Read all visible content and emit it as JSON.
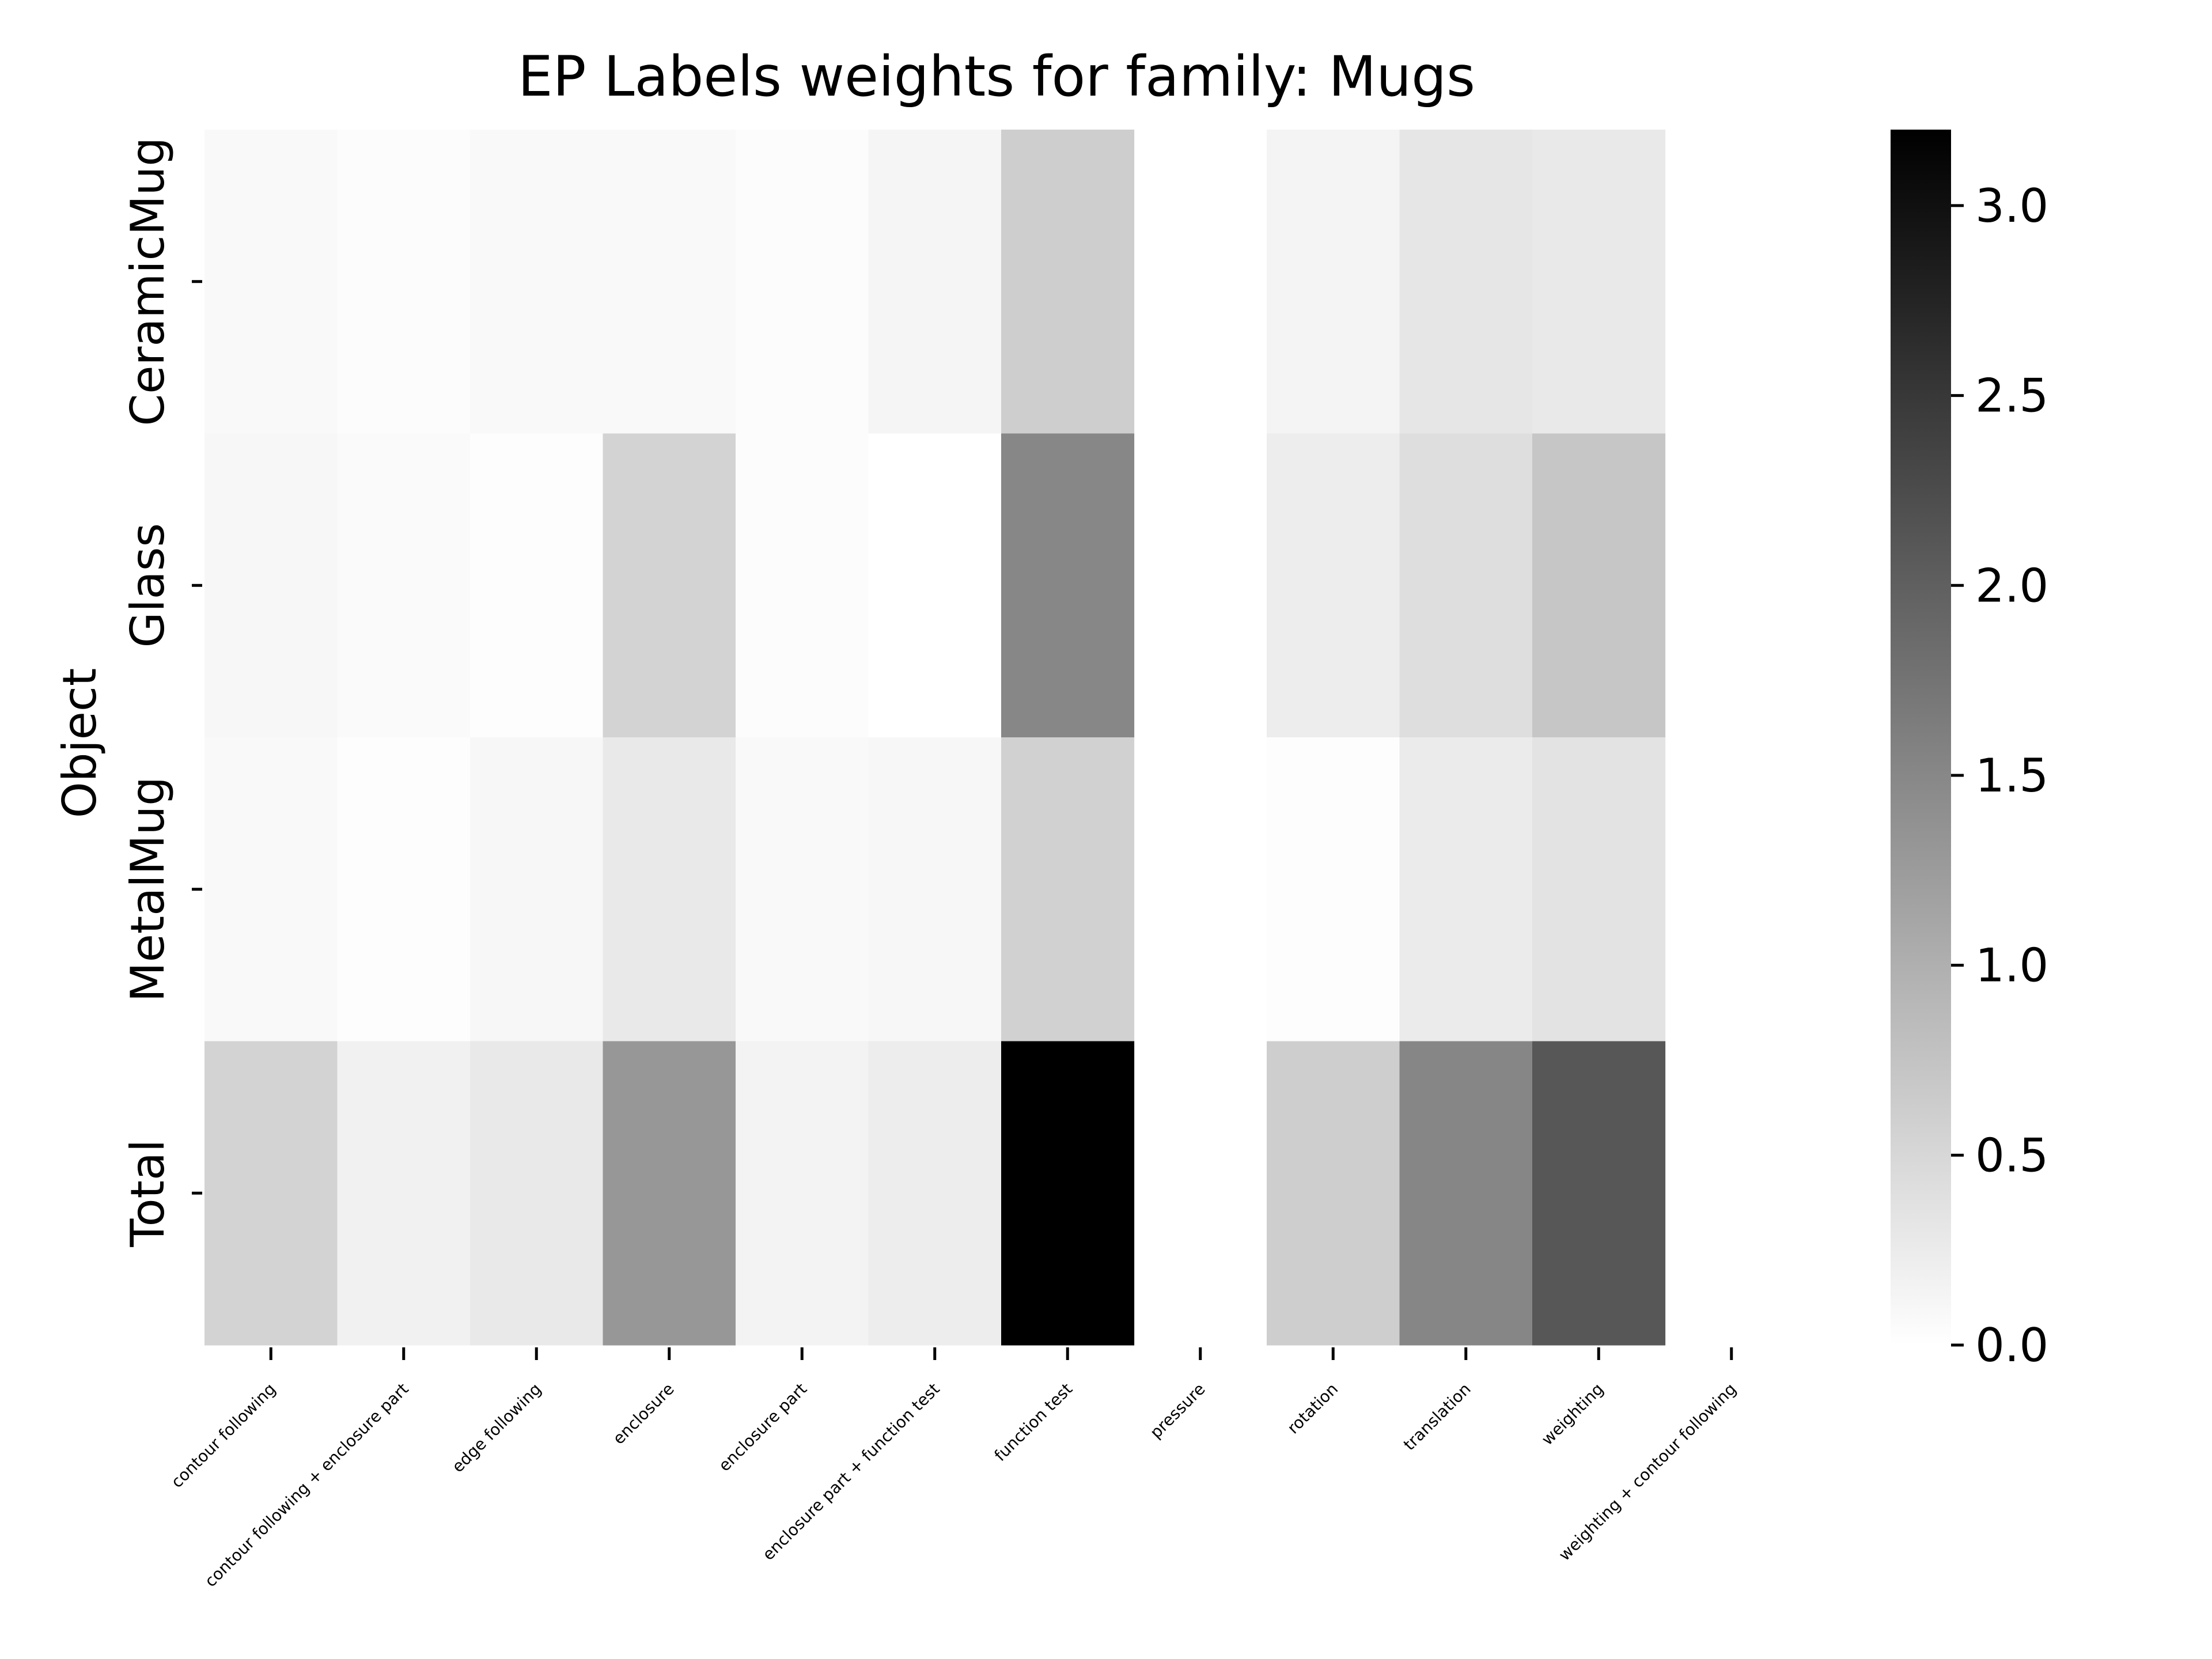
{
  "chart_data": {
    "type": "heatmap",
    "title": "EP Labels weights for family: Mugs",
    "ylabel": "Object",
    "xlabel": "",
    "rows": [
      "CeramicMug",
      "Glass",
      "MetalMug",
      "Total"
    ],
    "columns": [
      "contour following",
      "contour following + enclosure part",
      "edge following",
      "enclosure",
      "enclosure part",
      "enclosure part + function test",
      "function test",
      "pressure",
      "rotation",
      "translation",
      "weighting",
      "weighting + contour following"
    ],
    "values": [
      [
        0.08,
        0.04,
        0.08,
        0.08,
        0.04,
        0.12,
        0.62,
        null,
        0.14,
        0.32,
        0.28,
        null
      ],
      [
        0.1,
        0.06,
        0.02,
        0.55,
        0.04,
        0.0,
        1.5,
        null,
        0.22,
        0.42,
        0.72,
        null
      ],
      [
        0.07,
        0.03,
        0.1,
        0.28,
        0.07,
        0.1,
        0.58,
        null,
        0.03,
        0.25,
        0.35,
        null
      ],
      [
        0.55,
        0.17,
        0.28,
        1.3,
        0.15,
        0.22,
        3.2,
        null,
        0.62,
        1.52,
        2.11,
        null
      ]
    ],
    "colorbar": {
      "range": [
        0.0,
        3.2
      ],
      "ticks": [
        "0.0",
        "0.5",
        "1.0",
        "1.5",
        "2.0",
        "2.5",
        "3.0"
      ],
      "colormap": "white-to-black",
      "low_color": "#ffffff",
      "high_color": "#000000"
    }
  }
}
